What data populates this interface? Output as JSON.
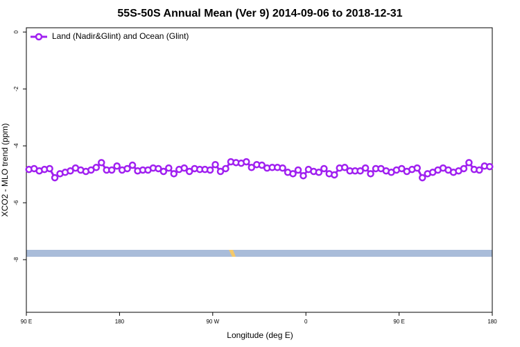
{
  "chart_data": {
    "type": "line",
    "title": "55S-50S Annual Mean (Ver 9)   2014-09-06 to 2018-12-31",
    "xlabel": "Longitude (deg E)",
    "ylabel": "XCO2 - MLO trend (ppm)",
    "xlim": [
      90,
      540
    ],
    "ylim": [
      -9.85,
      0.15
    ],
    "xticks": [
      {
        "value": 90,
        "label": "90 E"
      },
      180,
      {
        "value": 270,
        "label": "90 W"
      },
      {
        "value": 360,
        "label": "0"
      },
      {
        "value": 450,
        "label": "90 E"
      },
      {
        "value": 540,
        "label": "180"
      }
    ],
    "yticks": [
      0,
      -2,
      -4,
      -6,
      -8
    ],
    "legend": "top-left",
    "x": [
      92.5,
      97.5,
      102.5,
      107.5,
      112.5,
      117.5,
      122.5,
      127.5,
      132.5,
      137.5,
      142.5,
      147.5,
      152.5,
      157.5,
      162.5,
      167.5,
      172.5,
      177.5,
      182.5,
      187.5,
      192.5,
      197.5,
      202.5,
      207.5,
      212.5,
      217.5,
      222.5,
      227.5,
      232.5,
      237.5,
      242.5,
      247.5,
      252.5,
      257.5,
      262.5,
      267.5,
      272.5,
      277.5,
      282.5,
      287.5,
      292.5,
      297.5,
      302.5,
      307.5,
      312.5,
      317.5,
      322.5,
      327.5,
      332.5,
      337.5,
      342.5,
      347.5,
      352.5,
      357.5,
      362.5,
      367.5,
      372.5,
      377.5,
      382.5,
      387.5,
      392.5,
      397.5,
      402.5,
      407.5,
      412.5,
      417.5,
      422.5,
      427.5,
      432.5,
      437.5,
      442.5,
      447.5,
      452.5,
      457.5,
      462.5,
      467.5,
      472.5,
      477.5,
      482.5,
      487.5,
      492.5,
      497.5,
      502.5,
      507.5,
      512.5,
      517.5,
      522.5,
      527.5,
      532.5,
      537.5
    ],
    "series": [
      {
        "name": "Land (Nadir&Glint) and Ocean (Glint)",
        "color": "#a020f0",
        "values": [
          -4.83,
          -4.8,
          -4.88,
          -4.83,
          -4.8,
          -5.12,
          -4.98,
          -4.93,
          -4.88,
          -4.78,
          -4.85,
          -4.9,
          -4.85,
          -4.76,
          -4.59,
          -4.85,
          -4.85,
          -4.71,
          -4.85,
          -4.8,
          -4.68,
          -4.88,
          -4.85,
          -4.85,
          -4.78,
          -4.8,
          -4.9,
          -4.78,
          -4.98,
          -4.83,
          -4.78,
          -4.9,
          -4.8,
          -4.83,
          -4.83,
          -4.85,
          -4.66,
          -4.9,
          -4.8,
          -4.56,
          -4.59,
          -4.61,
          -4.56,
          -4.76,
          -4.66,
          -4.68,
          -4.78,
          -4.76,
          -4.76,
          -4.78,
          -4.93,
          -4.98,
          -4.85,
          -5.05,
          -4.83,
          -4.9,
          -4.93,
          -4.8,
          -4.98,
          -5.02,
          -4.78,
          -4.76,
          -4.88,
          -4.88,
          -4.88,
          -4.78,
          -4.98,
          -4.8,
          -4.8,
          -4.88,
          -4.93,
          -4.85,
          -4.8,
          -4.9,
          -4.83,
          -4.78,
          -5.12,
          -4.98,
          -4.93,
          -4.85,
          -4.78,
          -4.85,
          -4.93,
          -4.88,
          -4.8,
          -4.59,
          -4.83,
          -4.85,
          -4.71,
          -4.73
        ]
      }
    ]
  }
}
